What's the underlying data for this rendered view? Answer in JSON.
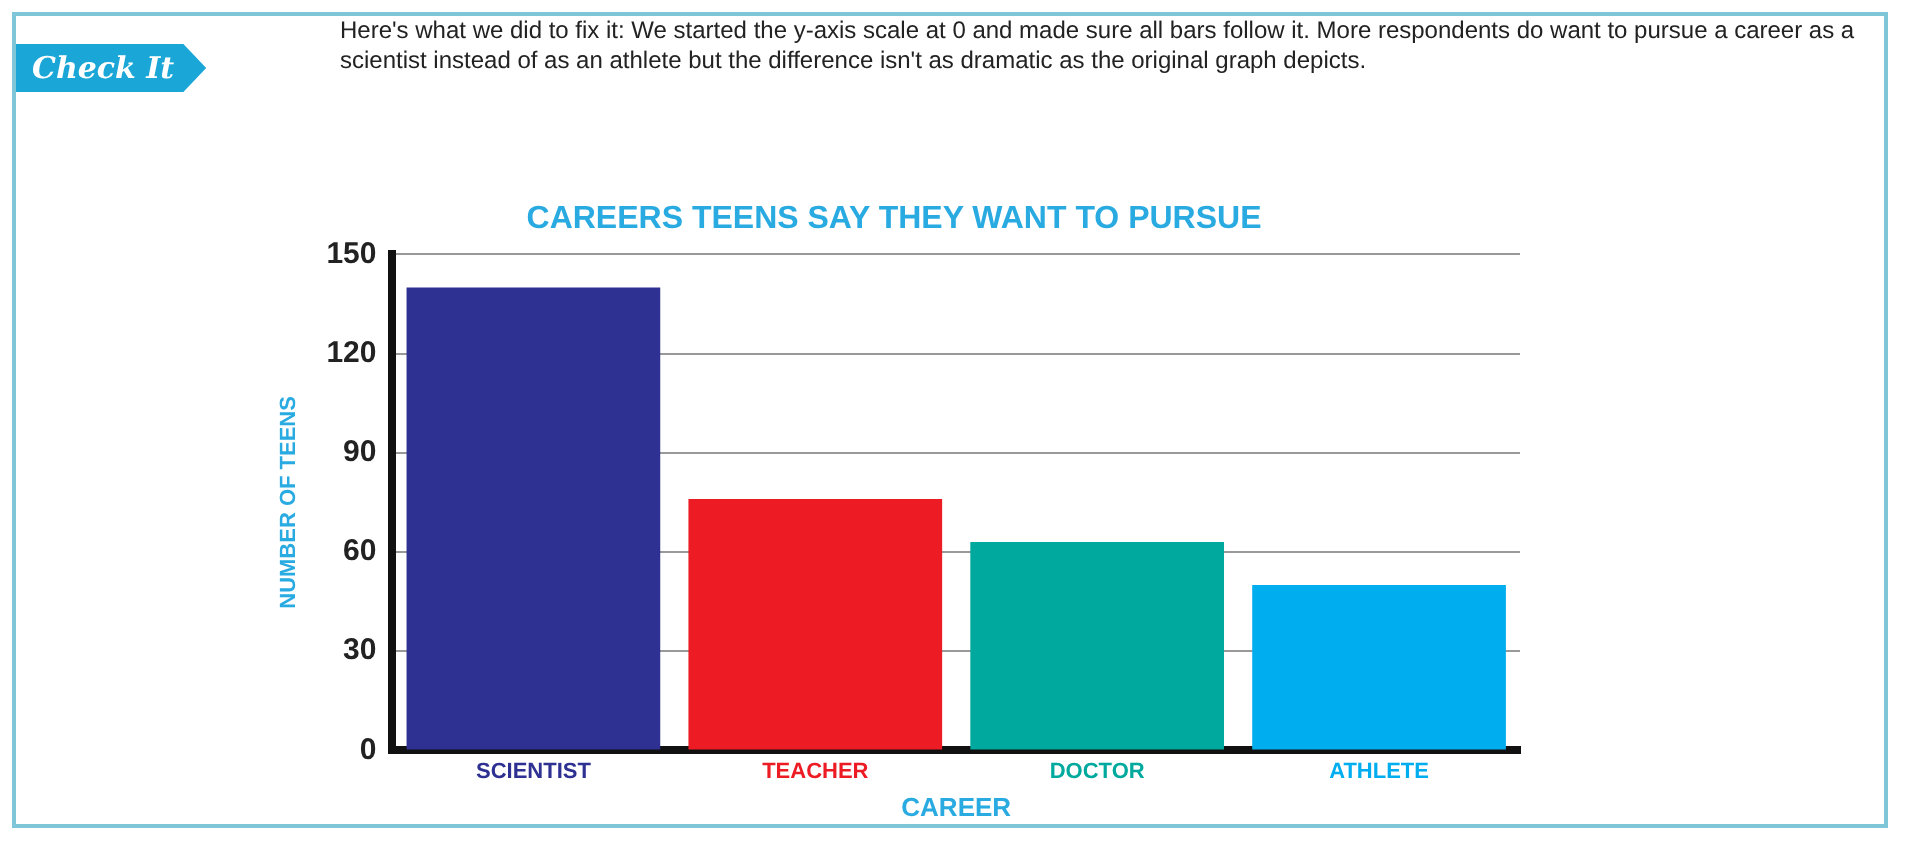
{
  "chart_data": {
    "type": "bar",
    "title": "CAREERS TEENS SAY THEY WANT TO PURSUE",
    "xlabel": "CAREER",
    "ylabel": "NUMBER OF TEENS",
    "categories": [
      "SCIENTIST",
      "TEACHER",
      "DOCTOR",
      "ATHLETE"
    ],
    "values": [
      140,
      76,
      63,
      50
    ],
    "colors": [
      "#2e3192",
      "#ed1c24",
      "#00a99d",
      "#00aeef"
    ],
    "ylim": [
      0,
      150
    ],
    "yticks": [
      0,
      30,
      60,
      90,
      120,
      150
    ],
    "grid": "y",
    "annotations": [
      "Check It",
      "Here's what we did to fix it: We started the y-axis scale at 0 and made sure all bars follow it. More respondents do want to pursue a career as a scientist instead of as an athlete but the difference isn't as dramatic as the original graph depicts."
    ]
  }
}
